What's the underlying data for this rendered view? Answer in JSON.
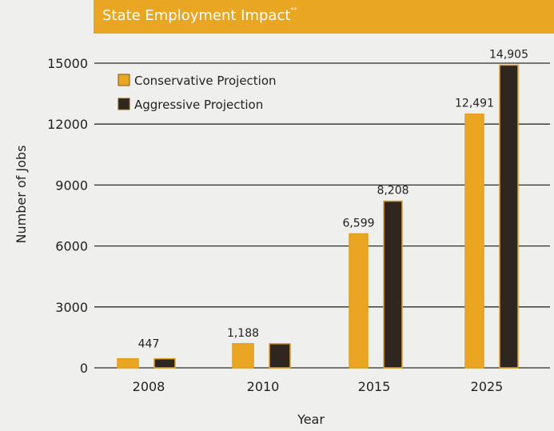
{
  "colors": {
    "header_bg": "#e8a623",
    "conservative": "#eaa623",
    "aggressive": "#2f2620",
    "bar_outline": "#e0a021"
  },
  "chart_data": {
    "type": "bar",
    "title": "State Employment Impact",
    "title_mark": "**",
    "xlabel": "Year",
    "ylabel": "Number of Jobs",
    "categories": [
      "2008",
      "2010",
      "2015",
      "2025"
    ],
    "ylim": [
      0,
      15000
    ],
    "yticks": [
      0,
      3000,
      6000,
      9000,
      12000,
      15000
    ],
    "grid": true,
    "legend_position": "top-left",
    "series": [
      {
        "name": "Conservative Projection",
        "values": [
          447,
          1188,
          6599,
          12491
        ],
        "labels": [
          "447",
          "1,188",
          "6,599",
          "12,491"
        ]
      },
      {
        "name": "Aggressive Projection",
        "values": [
          447,
          1188,
          8208,
          14905
        ],
        "labels": [
          "",
          "",
          "8,208",
          "14,905"
        ]
      }
    ]
  }
}
